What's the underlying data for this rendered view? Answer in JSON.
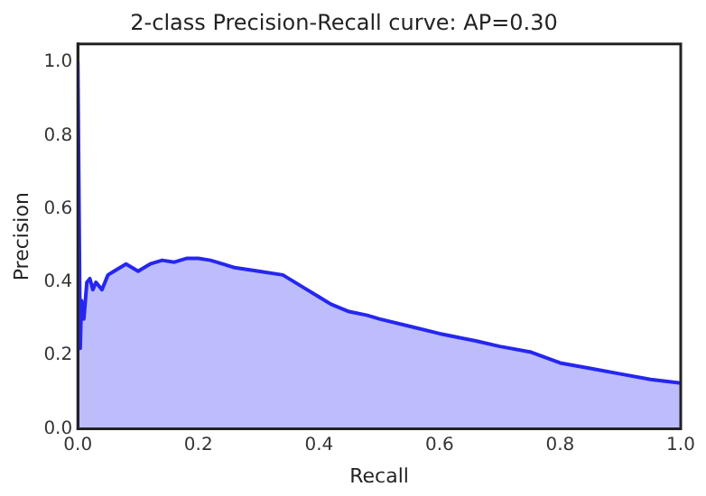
{
  "chart_data": {
    "type": "area",
    "title": "2-class Precision-Recall curve: AP=0.30",
    "xlabel": "Recall",
    "ylabel": "Precision",
    "xlim": [
      0,
      1
    ],
    "ylim": [
      0,
      1.05
    ],
    "xticks": [
      {
        "value": 0,
        "label": "0.0"
      },
      {
        "value": 0.2,
        "label": "0.2"
      },
      {
        "value": 0.4,
        "label": "0.4"
      },
      {
        "value": 0.6,
        "label": "0.6"
      },
      {
        "value": 0.8,
        "label": "0.8"
      },
      {
        "value": 1,
        "label": "1.0"
      }
    ],
    "yticks": [
      {
        "value": 0,
        "label": "0.0"
      },
      {
        "value": 0.2,
        "label": "0.2"
      },
      {
        "value": 0.4,
        "label": "0.4"
      },
      {
        "value": 0.6,
        "label": "0.6"
      },
      {
        "value": 0.8,
        "label": "0.8"
      },
      {
        "value": 1,
        "label": "1.0"
      }
    ],
    "grid": false,
    "legend": false,
    "marker": "none",
    "line_style": "solid",
    "series": [
      {
        "color": "#2626f2",
        "x": [
          0,
          0.004,
          0.006,
          0.01,
          0.015,
          0.02,
          0.025,
          0.03,
          0.04,
          0.05,
          0.06,
          0.07,
          0.08,
          0.09,
          0.1,
          0.12,
          0.14,
          0.16,
          0.18,
          0.2,
          0.22,
          0.24,
          0.26,
          0.3,
          0.34,
          0.38,
          0.4,
          0.42,
          0.45,
          0.48,
          0.5,
          0.55,
          0.6,
          0.63,
          0.66,
          0.7,
          0.75,
          0.8,
          0.85,
          0.9,
          0.95,
          1
        ],
        "values": [
          1.0,
          0.22,
          0.35,
          0.3,
          0.4,
          0.41,
          0.38,
          0.4,
          0.38,
          0.42,
          0.43,
          0.44,
          0.45,
          0.44,
          0.43,
          0.45,
          0.46,
          0.455,
          0.465,
          0.465,
          0.46,
          0.45,
          0.44,
          0.43,
          0.42,
          0.38,
          0.36,
          0.34,
          0.32,
          0.31,
          0.3,
          0.28,
          0.26,
          0.25,
          0.24,
          0.225,
          0.21,
          0.18,
          0.165,
          0.15,
          0.135,
          0.125
        ]
      }
    ]
  }
}
